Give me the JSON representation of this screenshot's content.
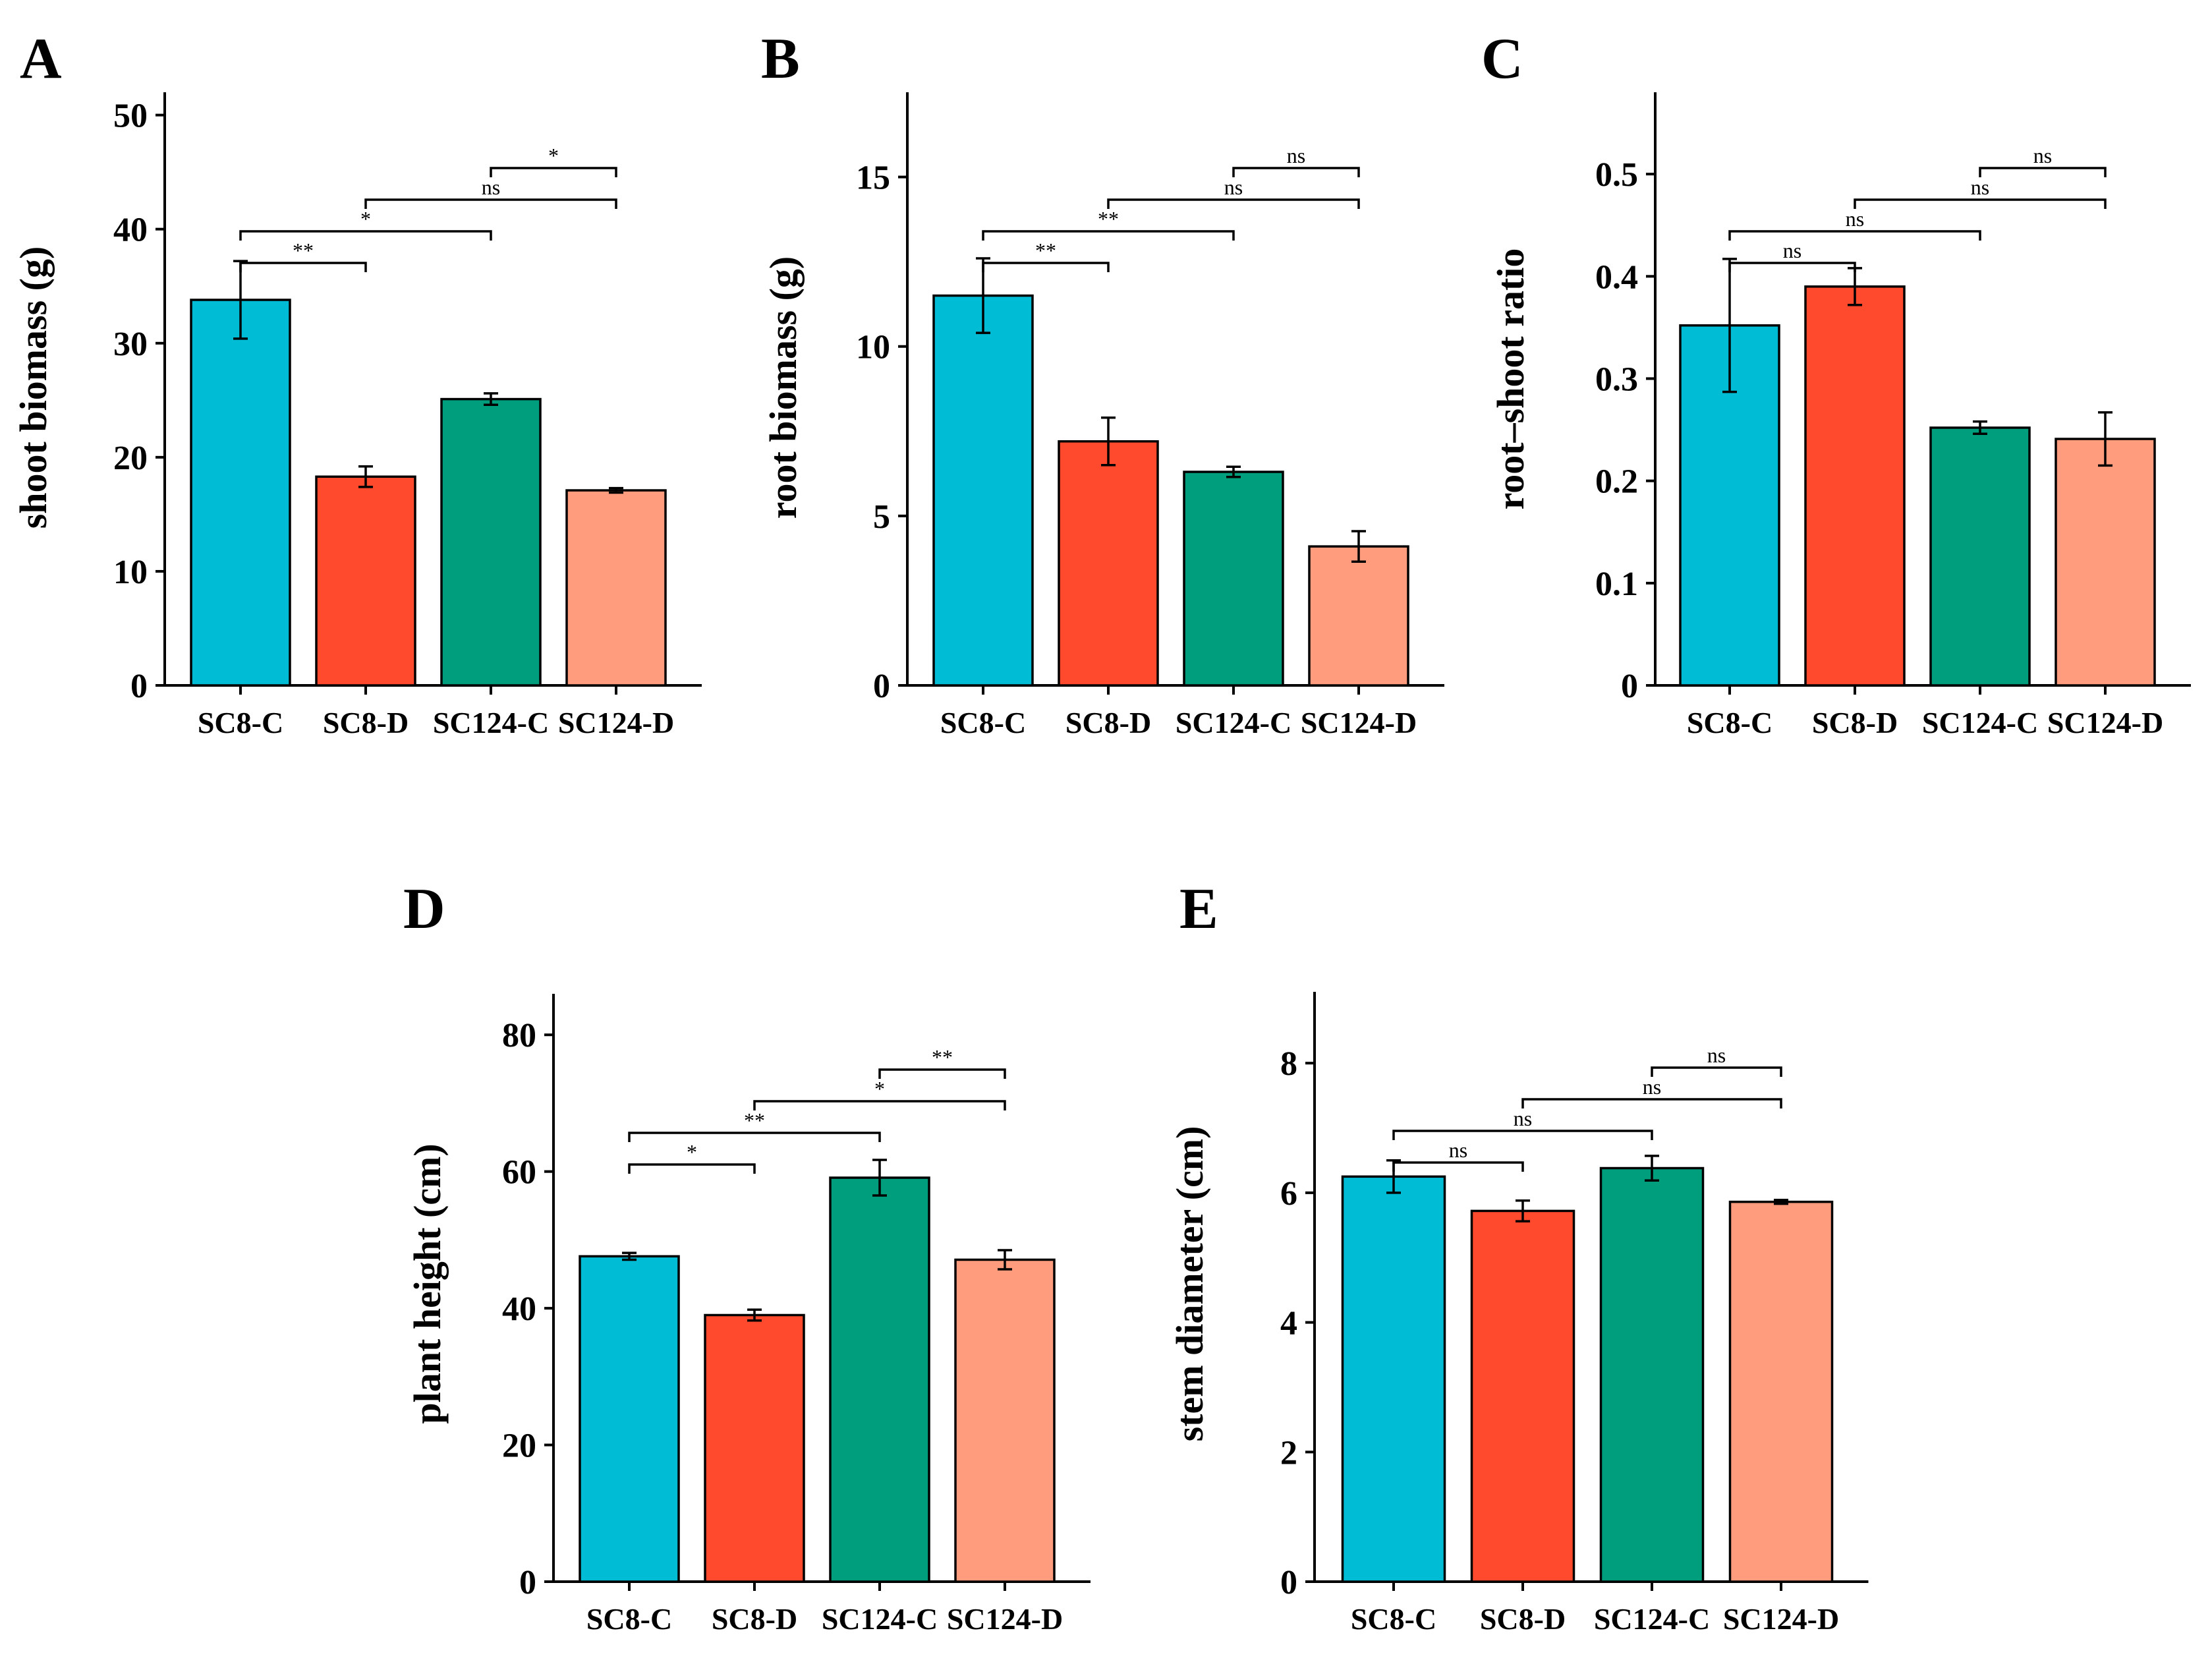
{
  "categories": [
    "SC8-C",
    "SC8-D",
    "SC124-C",
    "SC124-D"
  ],
  "colors": [
    "#00bcd4",
    "#ff4a2e",
    "#009e7d",
    "#ff9c7e"
  ],
  "chart_data": [
    {
      "type": "bar",
      "panel": "A",
      "title": "",
      "xlabel": "",
      "ylabel": "shoot biomass (g)",
      "ylim": [
        0,
        52
      ],
      "yticks": [
        0,
        10,
        20,
        30,
        40,
        50
      ],
      "categories": [
        "SC8-C",
        "SC8-D",
        "SC124-C",
        "SC124-D"
      ],
      "values": [
        33.8,
        18.3,
        25.1,
        17.1
      ],
      "errors": [
        3.4,
        0.9,
        0.5,
        0.2
      ],
      "significance": [
        {
          "from": 0,
          "to": 1,
          "label": "**"
        },
        {
          "from": 0,
          "to": 2,
          "label": "*"
        },
        {
          "from": 1,
          "to": 3,
          "label": "ns"
        },
        {
          "from": 2,
          "to": 3,
          "label": "*"
        }
      ]
    },
    {
      "type": "bar",
      "panel": "B",
      "title": "",
      "xlabel": "",
      "ylabel": "root biomass (g)",
      "ylim": [
        0,
        17.5
      ],
      "yticks": [
        0,
        5,
        10,
        15
      ],
      "categories": [
        "SC8-C",
        "SC8-D",
        "SC124-C",
        "SC124-D"
      ],
      "values": [
        11.5,
        7.2,
        6.3,
        4.1
      ],
      "errors": [
        1.1,
        0.7,
        0.15,
        0.45
      ],
      "significance": [
        {
          "from": 0,
          "to": 1,
          "label": "**"
        },
        {
          "from": 0,
          "to": 2,
          "label": "**"
        },
        {
          "from": 1,
          "to": 3,
          "label": "ns"
        },
        {
          "from": 2,
          "to": 3,
          "label": "ns"
        }
      ]
    },
    {
      "type": "bar",
      "panel": "C",
      "title": "",
      "xlabel": "",
      "ylabel": "root–shoot ratio",
      "ylim": [
        0,
        0.58
      ],
      "yticks": [
        0,
        0.1,
        0.2,
        0.3,
        0.4,
        0.5
      ],
      "categories": [
        "SC8-C",
        "SC8-D",
        "SC124-C",
        "SC124-D"
      ],
      "values": [
        0.352,
        0.39,
        0.252,
        0.241
      ],
      "errors": [
        0.065,
        0.018,
        0.006,
        0.026
      ],
      "significance": [
        {
          "from": 0,
          "to": 1,
          "label": "ns"
        },
        {
          "from": 0,
          "to": 2,
          "label": "ns"
        },
        {
          "from": 1,
          "to": 3,
          "label": "ns"
        },
        {
          "from": 2,
          "to": 3,
          "label": "ns"
        }
      ]
    },
    {
      "type": "bar",
      "panel": "D",
      "title": "",
      "xlabel": "",
      "ylabel": "plant height (cm)",
      "ylim": [
        0,
        86
      ],
      "yticks": [
        0,
        20,
        40,
        60,
        80
      ],
      "categories": [
        "SC8-C",
        "SC8-D",
        "SC124-C",
        "SC124-D"
      ],
      "values": [
        47.6,
        39.0,
        59.1,
        47.1
      ],
      "errors": [
        0.5,
        0.8,
        2.6,
        1.4
      ],
      "significance": [
        {
          "from": 0,
          "to": 1,
          "label": "*"
        },
        {
          "from": 0,
          "to": 2,
          "label": "**"
        },
        {
          "from": 1,
          "to": 3,
          "label": "*"
        },
        {
          "from": 2,
          "to": 3,
          "label": "**"
        }
      ]
    },
    {
      "type": "bar",
      "panel": "E",
      "title": "",
      "xlabel": "",
      "ylabel": "stem diameter (cm)",
      "ylim": [
        0,
        9.1
      ],
      "yticks": [
        0,
        2,
        4,
        6,
        8
      ],
      "categories": [
        "SC8-C",
        "SC8-D",
        "SC124-C",
        "SC124-D"
      ],
      "values": [
        6.25,
        5.72,
        6.38,
        5.86
      ],
      "errors": [
        0.25,
        0.16,
        0.19,
        0.03
      ],
      "significance": [
        {
          "from": 0,
          "to": 1,
          "label": "ns"
        },
        {
          "from": 0,
          "to": 2,
          "label": "ns"
        },
        {
          "from": 1,
          "to": 3,
          "label": "ns"
        },
        {
          "from": 2,
          "to": 3,
          "label": "ns"
        }
      ]
    }
  ]
}
